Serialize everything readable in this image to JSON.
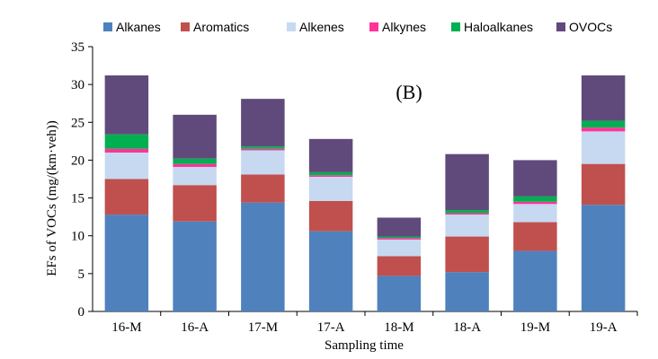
{
  "chart_data": {
    "type": "bar",
    "stacked": true,
    "annotation": "(B)",
    "xlabel": "Sampling time",
    "ylabel": "EFs of  VOCs (mg/(km·veh))",
    "ylim": [
      0,
      35
    ],
    "yticks": [
      "0",
      "5",
      "10",
      "15",
      "20",
      "25",
      "30",
      "35"
    ],
    "categories": [
      "16-M",
      "16-A",
      "17-M",
      "17-A",
      "18-M",
      "18-A",
      "19-M",
      "19-A"
    ],
    "series": [
      {
        "name": "Alkanes",
        "color": "#4F81BD",
        "values": [
          12.8,
          11.9,
          14.4,
          10.6,
          4.7,
          5.2,
          8.0,
          14.1
        ]
      },
      {
        "name": "Aromatics",
        "color": "#C0504D",
        "values": [
          4.7,
          4.8,
          3.7,
          4.0,
          2.6,
          4.7,
          3.8,
          5.4
        ]
      },
      {
        "name": "Alkenes",
        "color": "#C6D9F1",
        "values": [
          3.5,
          2.4,
          3.2,
          3.2,
          2.2,
          2.9,
          2.4,
          4.3
        ]
      },
      {
        "name": "Alkynes",
        "color": "#FF3399",
        "values": [
          0.5,
          0.4,
          0.2,
          0.2,
          0.2,
          0.2,
          0.3,
          0.5
        ]
      },
      {
        "name": "Haloalkanes",
        "color": "#00B050",
        "values": [
          1.9,
          0.7,
          0.3,
          0.4,
          0.2,
          0.4,
          0.7,
          0.9
        ]
      },
      {
        "name": "OVOCs",
        "color": "#604A7B",
        "values": [
          7.8,
          5.8,
          6.3,
          4.4,
          2.5,
          7.4,
          4.8,
          6.0
        ]
      }
    ],
    "legend_position": "top"
  }
}
